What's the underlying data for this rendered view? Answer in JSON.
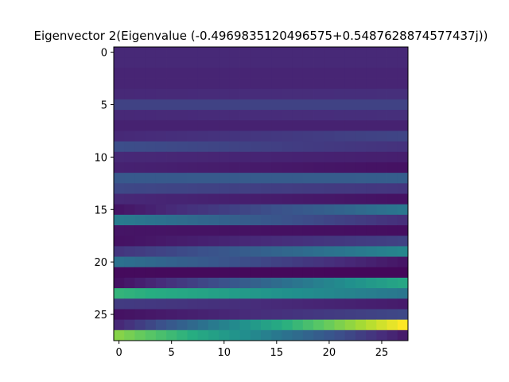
{
  "chart_data": {
    "type": "heatmap",
    "title": "Eigenvector 2(Eigenvalue (-0.4969835120496575+0.5487628874577437j))",
    "xlabel": "",
    "ylabel": "",
    "rows": 28,
    "cols": 28,
    "xlim": [
      -0.5,
      27.5
    ],
    "ylim": [
      27.5,
      -0.5
    ],
    "x_ticks": [
      0,
      5,
      10,
      15,
      20,
      25
    ],
    "y_ticks": [
      0,
      5,
      10,
      15,
      20,
      25
    ],
    "colormap": "viridis",
    "grid": false,
    "row_profiles": [
      [
        0.12,
        0.12
      ],
      [
        0.12,
        0.12
      ],
      [
        0.11,
        0.11
      ],
      [
        0.11,
        0.11
      ],
      [
        0.12,
        0.14
      ],
      [
        0.2,
        0.2
      ],
      [
        0.12,
        0.14
      ],
      [
        0.1,
        0.1
      ],
      [
        0.12,
        0.21
      ],
      [
        0.24,
        0.15
      ],
      [
        0.12,
        0.09
      ],
      [
        0.1,
        0.05
      ],
      [
        0.28,
        0.3
      ],
      [
        0.22,
        0.16
      ],
      [
        0.12,
        0.05
      ],
      [
        0.06,
        0.4
      ],
      [
        0.42,
        0.14
      ],
      [
        0.06,
        0.04
      ],
      [
        0.05,
        0.2
      ],
      [
        0.16,
        0.46
      ],
      [
        0.38,
        0.06
      ],
      [
        0.03,
        0.02
      ],
      [
        0.05,
        0.6
      ],
      [
        0.66,
        0.4
      ],
      [
        0.18,
        0.08
      ],
      [
        0.05,
        0.22
      ],
      [
        0.12,
        1.0
      ],
      [
        0.82,
        0.08
      ]
    ]
  }
}
